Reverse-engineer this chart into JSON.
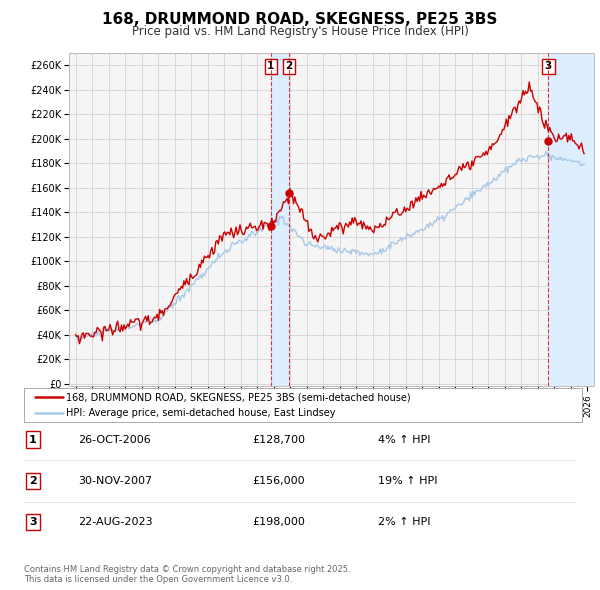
{
  "title": "168, DRUMMOND ROAD, SKEGNESS, PE25 3BS",
  "subtitle": "Price paid vs. HM Land Registry's House Price Index (HPI)",
  "title_fontsize": 11,
  "subtitle_fontsize": 8.5,
  "ylabel_values": [
    "£0",
    "£20K",
    "£40K",
    "£60K",
    "£80K",
    "£100K",
    "£120K",
    "£140K",
    "£160K",
    "£180K",
    "£200K",
    "£220K",
    "£240K",
    "£260K"
  ],
  "yticks": [
    0,
    20000,
    40000,
    60000,
    80000,
    100000,
    120000,
    140000,
    160000,
    180000,
    200000,
    220000,
    240000,
    260000
  ],
  "xlim_start": 1994.6,
  "xlim_end": 2026.4,
  "ylim_min": -2000,
  "ylim_max": 270000,
  "hpi_color": "#a8c8e8",
  "price_color": "#cc0000",
  "marker_color": "#cc0000",
  "sale_dates": [
    2006.82,
    2007.92,
    2023.64
  ],
  "sale_prices": [
    128700,
    156000,
    198000
  ],
  "sale_labels": [
    "1",
    "2",
    "3"
  ],
  "vline_color": "#cc0000",
  "shade_color": "#ddeeff",
  "legend_label_house": "168, DRUMMOND ROAD, SKEGNESS, PE25 3BS (semi-detached house)",
  "legend_label_hpi": "HPI: Average price, semi-detached house, East Lindsey",
  "table_entries": [
    [
      "1",
      "26-OCT-2006",
      "£128,700",
      "4% ↑ HPI"
    ],
    [
      "2",
      "30-NOV-2007",
      "£156,000",
      "19% ↑ HPI"
    ],
    [
      "3",
      "22-AUG-2023",
      "£198,000",
      "2% ↑ HPI"
    ]
  ],
  "footer_text": "Contains HM Land Registry data © Crown copyright and database right 2025.\nThis data is licensed under the Open Government Licence v3.0.",
  "bg_color": "#f5f5f5"
}
